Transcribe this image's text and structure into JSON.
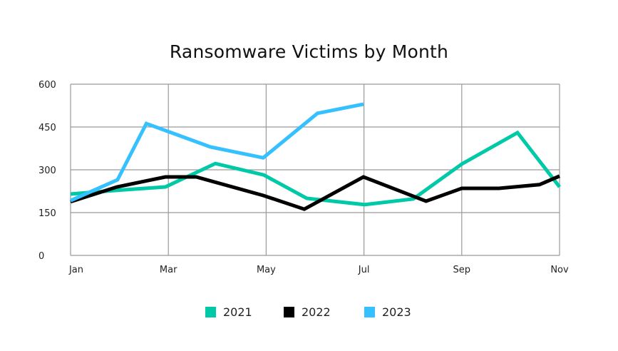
{
  "chart_data": {
    "type": "line",
    "title": "Ransomware Victims by Month",
    "xlabel": "",
    "ylabel": "",
    "ylim": [
      0,
      600
    ],
    "xlim": [
      0,
      10
    ],
    "yticks": [
      0,
      150,
      300,
      450,
      600
    ],
    "xtick_labels": [
      "Jan",
      "Mar",
      "May",
      "Jul",
      "Sep",
      "Nov"
    ],
    "xtick_positions": [
      0,
      2,
      4,
      6,
      8,
      10
    ],
    "grid": true,
    "legend_position": "bottom",
    "series": [
      {
        "name": "2021",
        "color": "#00C9A7",
        "points": [
          {
            "x": 0.0,
            "y": 215
          },
          {
            "x": 0.95,
            "y": 228
          },
          {
            "x": 1.94,
            "y": 240
          },
          {
            "x": 2.96,
            "y": 322
          },
          {
            "x": 3.95,
            "y": 282
          },
          {
            "x": 4.83,
            "y": 200
          },
          {
            "x": 6.01,
            "y": 178
          },
          {
            "x": 7.01,
            "y": 198
          },
          {
            "x": 8.0,
            "y": 320
          },
          {
            "x": 9.14,
            "y": 430
          },
          {
            "x": 10.0,
            "y": 240
          }
        ]
      },
      {
        "name": "2022",
        "color": "#000000",
        "points": [
          {
            "x": 0.0,
            "y": 188
          },
          {
            "x": 0.95,
            "y": 240
          },
          {
            "x": 1.94,
            "y": 275
          },
          {
            "x": 2.57,
            "y": 275
          },
          {
            "x": 3.94,
            "y": 210
          },
          {
            "x": 4.78,
            "y": 162
          },
          {
            "x": 5.99,
            "y": 275
          },
          {
            "x": 7.27,
            "y": 190
          },
          {
            "x": 8.0,
            "y": 235
          },
          {
            "x": 8.76,
            "y": 235
          },
          {
            "x": 9.59,
            "y": 248
          },
          {
            "x": 10.0,
            "y": 278
          }
        ]
      },
      {
        "name": "2023",
        "color": "#35C0FF",
        "points": [
          {
            "x": 0.0,
            "y": 192
          },
          {
            "x": 0.96,
            "y": 265
          },
          {
            "x": 1.55,
            "y": 462
          },
          {
            "x": 2.86,
            "y": 380
          },
          {
            "x": 3.94,
            "y": 342
          },
          {
            "x": 5.05,
            "y": 498
          },
          {
            "x": 5.99,
            "y": 530
          }
        ]
      }
    ]
  },
  "legend": {
    "items": [
      {
        "label": "2021",
        "color": "#00C9A7"
      },
      {
        "label": "2022",
        "color": "#000000"
      },
      {
        "label": "2023",
        "color": "#35C0FF"
      }
    ]
  }
}
